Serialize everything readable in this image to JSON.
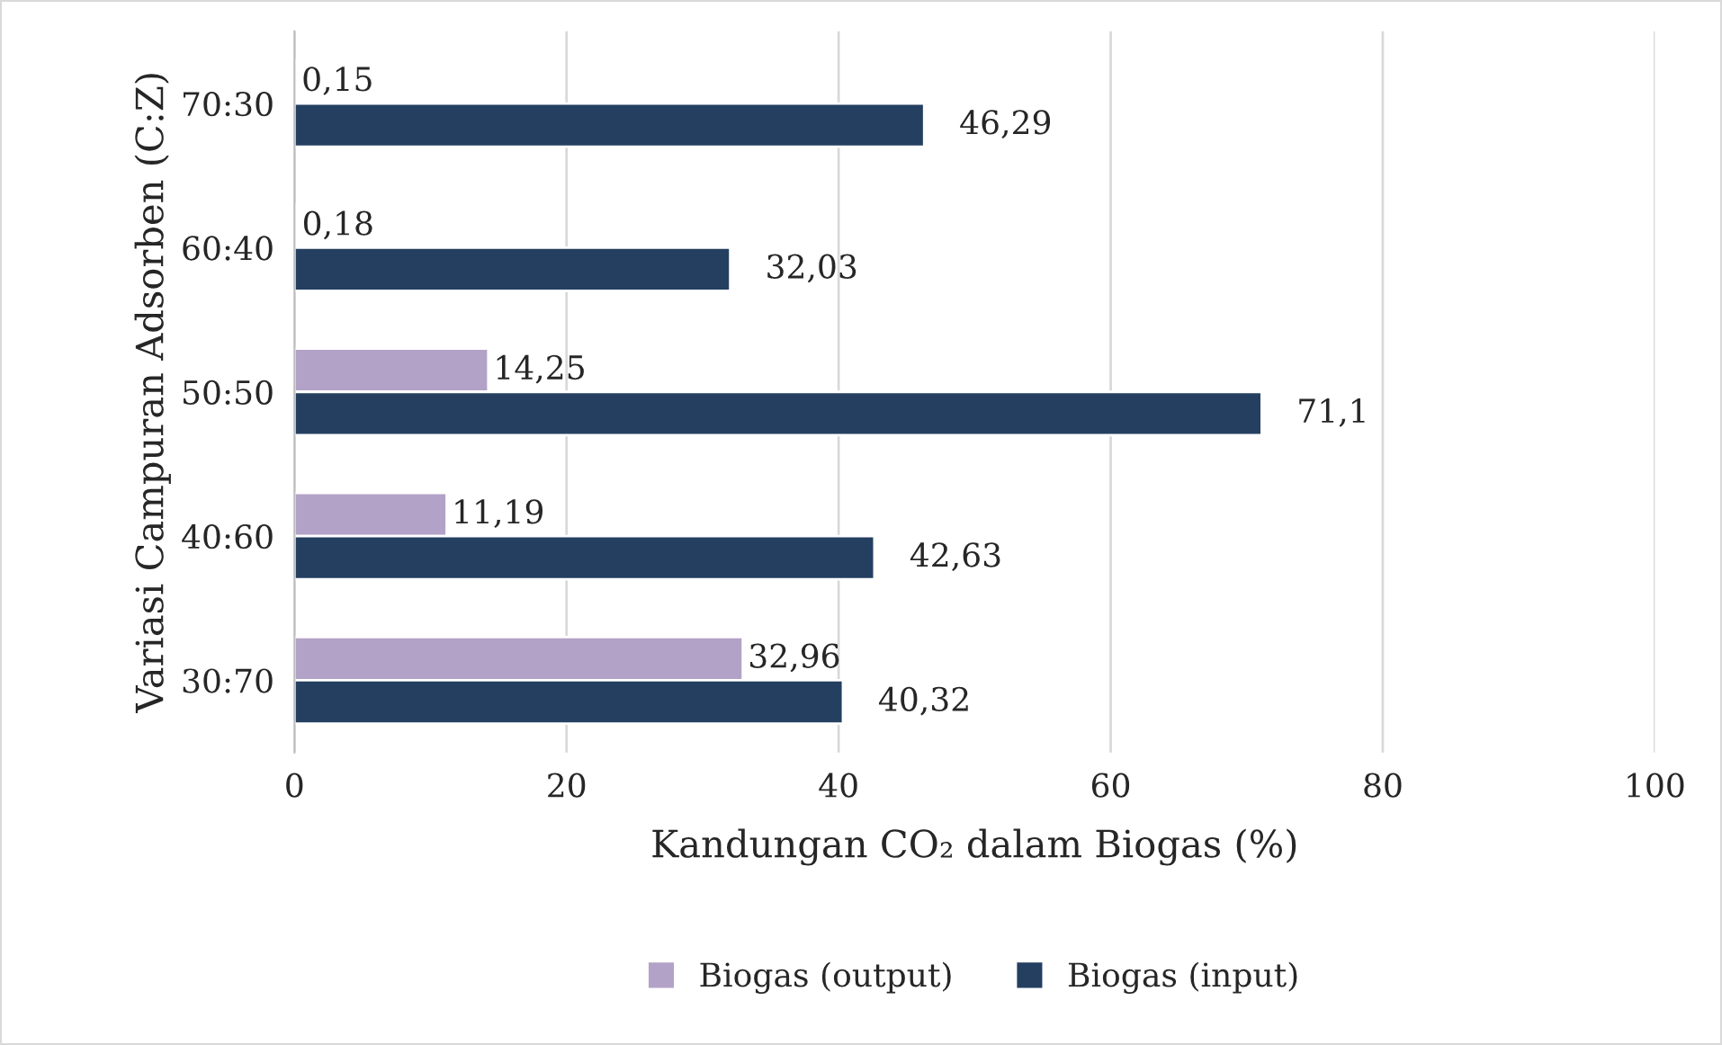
{
  "chart_data": {
    "type": "bar",
    "orientation": "horizontal",
    "xlabel": "Kandungan CO₂ dalam Biogas (%)",
    "ylabel": "Variasi Campuran Adsorben (C:Z)",
    "categories": [
      "70:30",
      "60:40",
      "50:50",
      "40:60",
      "30:70"
    ],
    "series": [
      {
        "name": "Biogas (output)",
        "color": "#b3a2c7",
        "values": [
          0.15,
          0.18,
          14.25,
          11.19,
          32.96
        ],
        "value_labels": [
          "0,15",
          "0,18",
          "14,25",
          "11,19",
          "32,96"
        ]
      },
      {
        "name": "Biogas (input)",
        "color": "#243f60",
        "values": [
          46.29,
          32.03,
          71.1,
          42.63,
          40.32
        ],
        "value_labels": [
          "46,29",
          "32,03",
          "71,1",
          "42,63",
          "40,32"
        ]
      }
    ],
    "xlim": [
      0,
      100
    ],
    "xticks": [
      0,
      20,
      40,
      60,
      80,
      100
    ],
    "grid": "x",
    "legend": "bottom"
  }
}
